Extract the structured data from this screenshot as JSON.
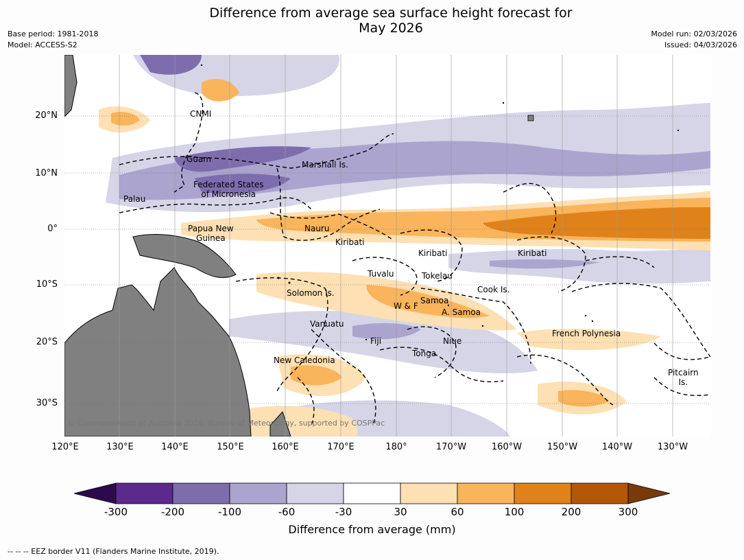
{
  "header": {
    "title_line1": "Difference from average sea surface height forecast for",
    "title_line2": "May 2026",
    "base_period": "Base period: 1981-2018",
    "model": "Model: ACCESS-S2",
    "model_run": "Model run: 02/03/2026",
    "issued": "Issued: 04/03/2026"
  },
  "map": {
    "lat_labels": [
      "20°N",
      "10°N",
      "0°",
      "10°S",
      "20°S",
      "30°S"
    ],
    "lon_labels": [
      "120°E",
      "130°E",
      "140°E",
      "150°E",
      "160°E",
      "170°E",
      "180°",
      "170°W",
      "160°W",
      "150°W",
      "140°W",
      "130°W"
    ],
    "places": {
      "cnmi": "CNMI",
      "guam": "Guam",
      "marshall": "Marshall Is.",
      "fsm_line1": "Federated States",
      "fsm_line2": "of Micronesia",
      "palau": "Palau",
      "png_line1": "Papua New",
      "png_line2": "Guinea",
      "nauru": "Nauru",
      "kiribati_west": "Kiribati",
      "kiribati_central": "Kiribati",
      "kiribati_east": "Kiribati",
      "tuvalu": "Tuvalu",
      "tokelau": "Tokelau",
      "cook": "Cook Is.",
      "solomon": "Solomon Is.",
      "samoa": "Samoa",
      "wallis": "W & F",
      "am_samoa": "A. Samoa",
      "vanuatu": "Vanuatu",
      "fiji": "Fiji",
      "niue": "Niue",
      "tonga": "Tonga",
      "new_caledonia": "New Caledonia",
      "french_polynesia": "French Polynesia",
      "pitcairn_line1": "Pitcairn",
      "pitcairn_line2": "Is."
    },
    "copyright": "© Commonwealth of Australia 2026, Bureau of Meteorology, supported by COSPPac"
  },
  "colorbar": {
    "ticks": [
      "-300",
      "-200",
      "-100",
      "-60",
      "-30",
      "30",
      "60",
      "100",
      "200",
      "300"
    ],
    "title": "Difference from average (mm)",
    "colors": {
      "extend_low": "#2d0a4e",
      "c1": "#5b2a8c",
      "c2": "#7e6dad",
      "c3": "#aba4cf",
      "c4": "#d6d5e8",
      "c5": "#ffffff",
      "c6": "#fde0b3",
      "c7": "#f9b45c",
      "c8": "#e0821a",
      "c9": "#b25708",
      "extend_high": "#7a3a08"
    }
  },
  "footer": {
    "legend": "--  --  -- EEZ border V11 (Flanders Marine Institute, 2019)."
  }
}
